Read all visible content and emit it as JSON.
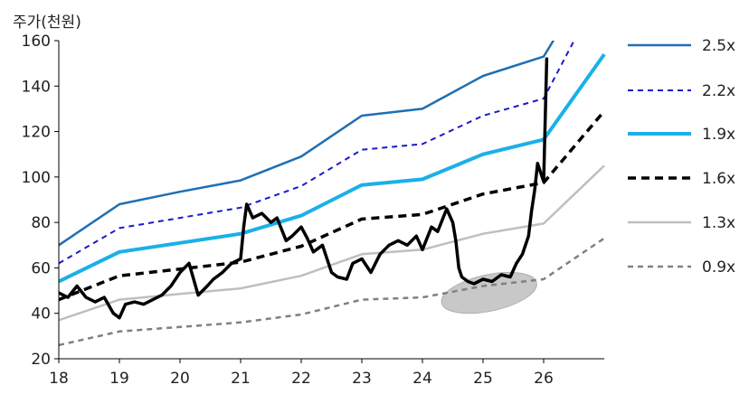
{
  "chart_data": {
    "type": "line",
    "ylabel": "주가(천원)",
    "xlabel": "",
    "xlim": [
      18,
      27
    ],
    "ylim": [
      20,
      160
    ],
    "x_ticks": [
      "18",
      "19",
      "20",
      "21",
      "22",
      "23",
      "24",
      "25",
      "26"
    ],
    "y_ticks": [
      "20",
      "40",
      "60",
      "80",
      "100",
      "120",
      "140",
      "160"
    ],
    "grid": false,
    "legend_position": "right",
    "bands": [
      {
        "name": "2.5x",
        "color": "#1f6fb2",
        "dash": "solid",
        "width": 2.5,
        "x": [
          18,
          19,
          20,
          21,
          22,
          23,
          24,
          25,
          26,
          26.5
        ],
        "y": [
          70,
          88,
          93.5,
          98.5,
          109,
          127,
          130,
          144.5,
          153,
          175
        ]
      },
      {
        "name": "2.2x",
        "color": "#1a1acc",
        "dash": "dashed",
        "width": 2,
        "x": [
          18,
          19,
          20,
          21,
          22,
          23,
          24,
          25,
          26,
          26.6
        ],
        "y": [
          62,
          77.5,
          82,
          86.5,
          96,
          112,
          114.5,
          127,
          134.5,
          165
        ]
      },
      {
        "name": "1.9x",
        "color": "#1ab0e8",
        "dash": "solid",
        "width": 4,
        "x": [
          18,
          19,
          20,
          21,
          22,
          23,
          24,
          25,
          26,
          27
        ],
        "y": [
          54,
          67,
          71,
          75,
          83,
          96.5,
          99,
          110,
          116.5,
          154
        ]
      },
      {
        "name": "1.6x",
        "color": "#000000",
        "dash": "dashed",
        "width": 3.5,
        "x": [
          18,
          19,
          20,
          21,
          22,
          23,
          24,
          25,
          26,
          27
        ],
        "y": [
          46,
          56.5,
          59.5,
          62.5,
          69.5,
          81.5,
          83.5,
          92.5,
          97.5,
          129
        ]
      },
      {
        "name": "1.3x",
        "color": "#bfbfbf",
        "dash": "solid",
        "width": 2.5,
        "x": [
          18,
          19,
          20,
          21,
          22,
          23,
          24,
          25,
          26,
          27
        ],
        "y": [
          37,
          46,
          48.5,
          51,
          56.5,
          66,
          68,
          75,
          79.5,
          105
        ]
      },
      {
        "name": "0.9x",
        "color": "#808080",
        "dash": "dashed",
        "width": 2.5,
        "x": [
          18,
          19,
          20,
          21,
          22,
          23,
          24,
          25,
          26,
          27
        ],
        "y": [
          26,
          32,
          34,
          36,
          39.5,
          46,
          47,
          52,
          55,
          73
        ]
      }
    ],
    "price": {
      "color": "#000000",
      "x": [
        18.0,
        18.15,
        18.3,
        18.45,
        18.6,
        18.75,
        18.9,
        19.0,
        19.1,
        19.25,
        19.4,
        19.55,
        19.7,
        19.85,
        20.0,
        20.15,
        20.3,
        20.45,
        20.55,
        20.7,
        20.85,
        21.0,
        21.05,
        21.1,
        21.2,
        21.35,
        21.5,
        21.6,
        21.75,
        21.85,
        22.0,
        22.1,
        22.2,
        22.35,
        22.5,
        22.6,
        22.75,
        22.85,
        23.0,
        23.15,
        23.3,
        23.45,
        23.6,
        23.75,
        23.9,
        24.0,
        24.15,
        24.25,
        24.4,
        24.5,
        24.55,
        24.6,
        24.65,
        24.75,
        24.85,
        25.0,
        25.15,
        25.3,
        25.45,
        25.55,
        25.65,
        25.75,
        25.8,
        25.85,
        25.9,
        25.95,
        26.0,
        26.05
      ],
      "y": [
        49,
        47,
        52,
        47,
        45,
        47,
        40,
        38,
        44,
        45,
        44,
        46,
        48,
        52,
        58,
        62,
        48,
        52,
        55,
        58,
        62,
        64,
        78,
        88,
        82,
        84,
        80,
        82,
        72,
        74,
        78,
        73,
        67,
        70,
        58,
        56,
        55,
        62,
        64,
        58,
        66,
        70,
        72,
        70,
        74,
        68,
        78,
        76,
        86,
        80,
        72,
        60,
        56,
        54,
        53,
        55,
        54,
        57,
        56,
        62,
        66,
        74,
        85,
        94,
        106,
        102,
        98,
        152
      ]
    },
    "annotation": {
      "shape": "ellipse",
      "x": 25.1,
      "y": 49,
      "rx_years": 0.8,
      "ry_units": 8,
      "rotation_deg": -12,
      "fill": "#c8c8c8"
    }
  }
}
